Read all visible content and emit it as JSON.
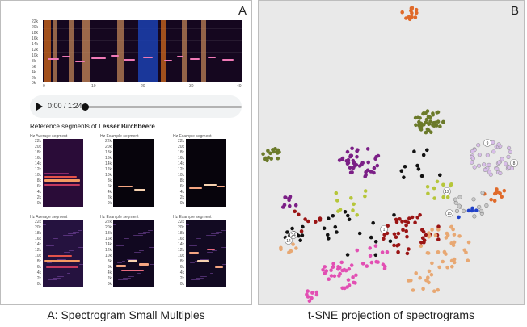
{
  "panels": {
    "a_label": "A",
    "b_label": "B"
  },
  "captions": {
    "left": "A: Spectrogram Small Multiples",
    "right": "t-SNE projection of spectrograms"
  },
  "spectrogram": {
    "y_ticks": [
      "22k",
      "20k",
      "18k",
      "16k",
      "14k",
      "12k",
      "10k",
      "8k",
      "6k",
      "4k",
      "2k",
      "0k"
    ],
    "x_ticks": [
      "0",
      "10",
      "20",
      "30",
      "40"
    ]
  },
  "audio_player": {
    "time": "0:00 / 1:24",
    "progress": 0.02,
    "play_icon": "play-icon"
  },
  "reference": {
    "prefix": "Reference segments of",
    "species": "Lesser Birchbeere"
  },
  "mini_spectrograms": {
    "unit": "Hz",
    "titles": [
      "Average segment",
      "Example segment",
      "Example segment",
      "Average segment",
      "Example segment",
      "Example segment"
    ],
    "ticks": [
      "22k",
      "20k",
      "18k",
      "16k",
      "14k",
      "12k",
      "10k",
      "8k",
      "6k",
      "4k",
      "2k",
      "0k"
    ]
  },
  "tsne": {
    "cluster_labels": [
      "9",
      "8",
      "1",
      "15",
      "12",
      "24",
      "14"
    ]
  },
  "colors": {
    "orange": "#e06a2a",
    "olive": "#6b7a2a",
    "purple": "#7b1f86",
    "black": "#111111",
    "lime": "#b6c63a",
    "darkred": "#9a1414",
    "pink": "#e24fb3",
    "peach": "#e8a873",
    "lilac": "#d8bde9",
    "grey": "#c8c8c8",
    "blue": "#2040c8"
  }
}
